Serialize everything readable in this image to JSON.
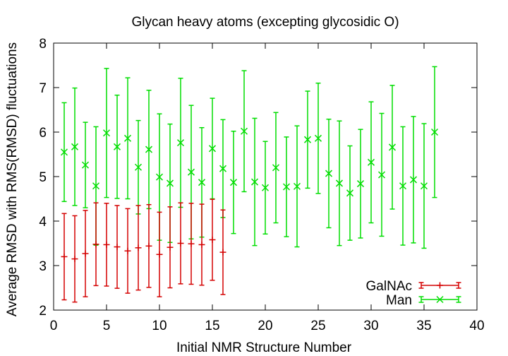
{
  "chart_data": {
    "type": "scatter",
    "title": "Glycan heavy atoms (excepting glycosidic O)",
    "xlabel": "Initial NMR Structure Number",
    "ylabel": "Average RMSD with RMS(RMSD) fluctuations",
    "xlim": [
      0,
      40
    ],
    "ylim": [
      2,
      8
    ],
    "xticks": [
      "0",
      "5",
      "10",
      "15",
      "20",
      "25",
      "30",
      "35",
      "40"
    ],
    "yticks": [
      "2",
      "3",
      "4",
      "5",
      "6",
      "7",
      "8"
    ],
    "legend_position": "bottom-right",
    "error_bars": true,
    "series": [
      {
        "name": "GalNAc",
        "color": "#d40000",
        "marker": "plus",
        "x": [
          1,
          2,
          3,
          4,
          5,
          6,
          7,
          8,
          9,
          10,
          11,
          12,
          13,
          14,
          15,
          16
        ],
        "y": [
          3.2,
          3.15,
          3.27,
          3.48,
          3.47,
          3.42,
          3.33,
          3.4,
          3.44,
          3.25,
          3.41,
          3.5,
          3.49,
          3.47,
          3.58,
          3.3
        ],
        "err": [
          0.97,
          0.97,
          0.97,
          0.93,
          0.93,
          0.93,
          0.95,
          0.95,
          0.93,
          0.95,
          0.91,
          0.91,
          0.91,
          0.91,
          0.91,
          0.95
        ]
      },
      {
        "name": "Man",
        "color": "#00dd00",
        "marker": "cross",
        "x": [
          1,
          2,
          3,
          4,
          5,
          6,
          7,
          8,
          9,
          10,
          11,
          12,
          13,
          14,
          15,
          16,
          17,
          18,
          19,
          20,
          21,
          22,
          23,
          24,
          25,
          26,
          27,
          28,
          29,
          30,
          31,
          32,
          33,
          34,
          35,
          36
        ],
        "y": [
          5.55,
          5.67,
          5.26,
          4.79,
          5.98,
          5.67,
          5.86,
          5.21,
          5.61,
          4.99,
          4.85,
          5.76,
          5.1,
          4.87,
          5.63,
          5.18,
          4.87,
          6.02,
          4.88,
          4.75,
          5.2,
          4.77,
          4.78,
          5.83,
          5.86,
          5.07,
          4.85,
          4.63,
          4.84,
          5.32,
          5.04,
          5.66,
          4.79,
          4.93,
          4.79,
          6.0
        ],
        "err": [
          1.11,
          1.32,
          0.96,
          1.33,
          1.45,
          1.16,
          1.36,
          1.05,
          1.33,
          1.42,
          1.33,
          1.45,
          1.5,
          1.23,
          1.13,
          1.1,
          1.15,
          1.36,
          1.43,
          1.04,
          1.24,
          1.12,
          1.36,
          1.09,
          1.24,
          1.22,
          1.4,
          1.06,
          1.22,
          1.36,
          1.38,
          1.39,
          1.33,
          1.42,
          1.4,
          1.47
        ]
      }
    ]
  }
}
